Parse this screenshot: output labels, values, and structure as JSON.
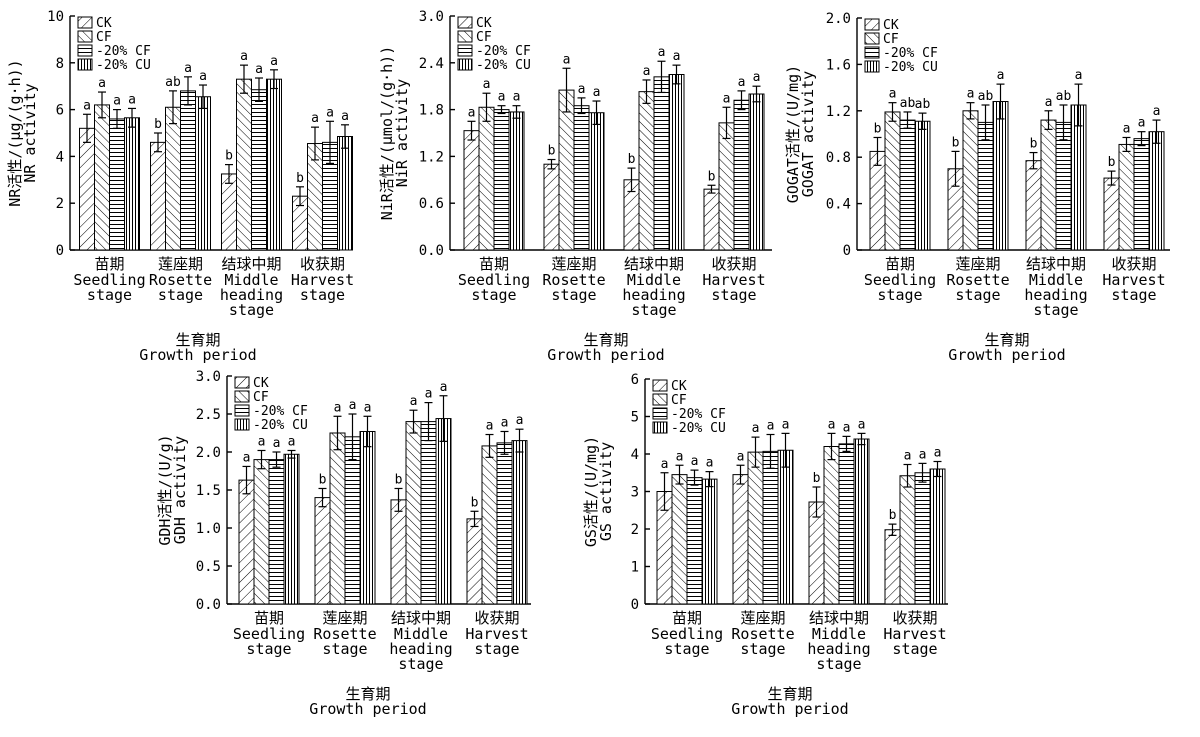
{
  "legend_labels": [
    "CK",
    "CF",
    "-20% CF",
    "-20% CU"
  ],
  "categories": [
    {
      "zh": "苗期",
      "en": [
        "Seedling",
        "stage"
      ]
    },
    {
      "zh": "莲座期",
      "en": [
        "Rosette",
        "stage"
      ]
    },
    {
      "zh": "结球中期",
      "en": [
        "Middle",
        "heading",
        "stage"
      ]
    },
    {
      "zh": "收获期",
      "en": [
        "Harvest",
        "stage"
      ]
    }
  ],
  "xlabel": {
    "zh": "生育期",
    "en": "Growth period"
  },
  "chart_data": [
    {
      "type": "bar",
      "ylabel_zh": "NR活性/(μg/(g·h))",
      "ylabel_en": "NR activity",
      "ylim": [
        0,
        10
      ],
      "yticks": [
        "0",
        "2",
        "4",
        "6",
        "8",
        "10"
      ],
      "series": [
        {
          "name": "CK",
          "values": [
            5.2,
            4.6,
            3.25,
            2.3
          ],
          "errors": [
            0.6,
            0.4,
            0.4,
            0.4
          ],
          "labels": [
            "a",
            "b",
            "b",
            "b"
          ]
        },
        {
          "name": "CF",
          "values": [
            6.2,
            6.1,
            7.3,
            4.55
          ],
          "errors": [
            0.55,
            0.7,
            0.6,
            0.7
          ],
          "labels": [
            "a",
            "ab",
            "a",
            "a"
          ]
        },
        {
          "name": "-20% CF",
          "values": [
            5.6,
            6.8,
            6.85,
            4.6
          ],
          "errors": [
            0.4,
            0.6,
            0.5,
            0.9
          ],
          "labels": [
            "a",
            "a",
            "a",
            "a"
          ]
        },
        {
          "name": "-20% CU",
          "values": [
            5.65,
            6.55,
            7.3,
            4.85
          ],
          "errors": [
            0.4,
            0.5,
            0.4,
            0.5
          ],
          "labels": [
            "a",
            "a",
            "a",
            "a"
          ]
        }
      ]
    },
    {
      "type": "bar",
      "ylabel_zh": "NiR活性/(μmol/(g·h))",
      "ylabel_en": "NiR activity",
      "ylim": [
        0,
        3
      ],
      "yticks": [
        "0.0",
        "0.6",
        "1.2",
        "1.8",
        "2.4",
        "3.0"
      ],
      "series": [
        {
          "name": "CK",
          "values": [
            1.53,
            1.1,
            0.9,
            0.78
          ],
          "errors": [
            0.12,
            0.06,
            0.15,
            0.05
          ],
          "labels": [
            "a",
            "b",
            "b",
            "b"
          ]
        },
        {
          "name": "CF",
          "values": [
            1.83,
            2.05,
            2.03,
            1.63
          ],
          "errors": [
            0.18,
            0.28,
            0.15,
            0.2
          ],
          "labels": [
            "a",
            "a",
            "a",
            "a"
          ]
        },
        {
          "name": "-20% CF",
          "values": [
            1.8,
            1.85,
            2.22,
            1.92
          ],
          "errors": [
            0.05,
            0.1,
            0.2,
            0.12
          ],
          "labels": [
            "a",
            "a",
            "a",
            "a"
          ]
        },
        {
          "name": "-20% CU",
          "values": [
            1.77,
            1.76,
            2.25,
            2.0
          ],
          "errors": [
            0.08,
            0.15,
            0.12,
            0.1
          ],
          "labels": [
            "a",
            "a",
            "a",
            "a"
          ]
        }
      ]
    },
    {
      "type": "bar",
      "ylabel_zh": "GOGAT活性/(U/mg)",
      "ylabel_en": "GOGAT activity",
      "ylim": [
        0,
        2
      ],
      "yticks": [
        "0",
        "0.4",
        "0.8",
        "1.2",
        "1.6",
        "2.0"
      ],
      "series": [
        {
          "name": "CK",
          "values": [
            0.85,
            0.7,
            0.77,
            0.62
          ],
          "errors": [
            0.12,
            0.15,
            0.07,
            0.06
          ],
          "labels": [
            "b",
            "b",
            "b",
            "b"
          ]
        },
        {
          "name": "CF",
          "values": [
            1.19,
            1.2,
            1.12,
            0.91
          ],
          "errors": [
            0.08,
            0.07,
            0.08,
            0.06
          ],
          "labels": [
            "a",
            "a",
            "a",
            "a"
          ]
        },
        {
          "name": "-20% CF",
          "values": [
            1.12,
            1.1,
            1.1,
            0.96
          ],
          "errors": [
            0.07,
            0.15,
            0.15,
            0.06
          ],
          "labels": [
            "ab",
            "ab",
            "ab",
            "a"
          ]
        },
        {
          "name": "-20% CU",
          "values": [
            1.11,
            1.28,
            1.25,
            1.02
          ],
          "errors": [
            0.07,
            0.15,
            0.18,
            0.1
          ],
          "labels": [
            "ab",
            "a",
            "a",
            "a"
          ]
        }
      ]
    },
    {
      "type": "bar",
      "ylabel_zh": "GDH活性/(U/g)",
      "ylabel_en": "GDH activity",
      "ylim": [
        0,
        3
      ],
      "yticks": [
        "0.0",
        "0.5",
        "1.0",
        "1.5",
        "2.0",
        "2.5",
        "3.0"
      ],
      "series": [
        {
          "name": "CK",
          "values": [
            1.63,
            1.4,
            1.37,
            1.12
          ],
          "errors": [
            0.18,
            0.12,
            0.15,
            0.1
          ],
          "labels": [
            "a",
            "b",
            "b",
            "b"
          ]
        },
        {
          "name": "CF",
          "values": [
            1.9,
            2.25,
            2.4,
            2.08
          ],
          "errors": [
            0.12,
            0.22,
            0.15,
            0.15
          ],
          "labels": [
            "a",
            "a",
            "a",
            "a"
          ]
        },
        {
          "name": "-20% CF",
          "values": [
            1.9,
            2.2,
            2.4,
            2.12
          ],
          "errors": [
            0.1,
            0.3,
            0.25,
            0.15
          ],
          "labels": [
            "a",
            "a",
            "a",
            "a"
          ]
        },
        {
          "name": "-20% CU",
          "values": [
            1.97,
            2.27,
            2.44,
            2.15
          ],
          "errors": [
            0.05,
            0.2,
            0.3,
            0.15
          ],
          "labels": [
            "a",
            "a",
            "a",
            "a"
          ]
        }
      ]
    },
    {
      "type": "bar",
      "ylabel_zh": "GS活性/(U/mg)",
      "ylabel_en": "GS activity",
      "ylim": [
        0,
        6
      ],
      "yticks": [
        "0",
        "1",
        "2",
        "3",
        "4",
        "5",
        "6"
      ],
      "series": [
        {
          "name": "CK",
          "values": [
            3.0,
            3.45,
            2.72,
            1.98
          ],
          "errors": [
            0.5,
            0.25,
            0.4,
            0.15
          ],
          "labels": [
            "a",
            "a",
            "b",
            "b"
          ]
        },
        {
          "name": "CF",
          "values": [
            3.45,
            4.05,
            4.2,
            3.42
          ],
          "errors": [
            0.25,
            0.4,
            0.35,
            0.3
          ],
          "labels": [
            "a",
            "a",
            "a",
            "a"
          ]
        },
        {
          "name": "-20% CF",
          "values": [
            3.37,
            4.07,
            4.27,
            3.5
          ],
          "errors": [
            0.2,
            0.45,
            0.2,
            0.25
          ],
          "labels": [
            "a",
            "a",
            "a",
            "a"
          ]
        },
        {
          "name": "-20% CU",
          "values": [
            3.33,
            4.1,
            4.4,
            3.6
          ],
          "errors": [
            0.2,
            0.45,
            0.15,
            0.2
          ],
          "labels": [
            "a",
            "a",
            "a",
            "a"
          ]
        }
      ]
    }
  ]
}
